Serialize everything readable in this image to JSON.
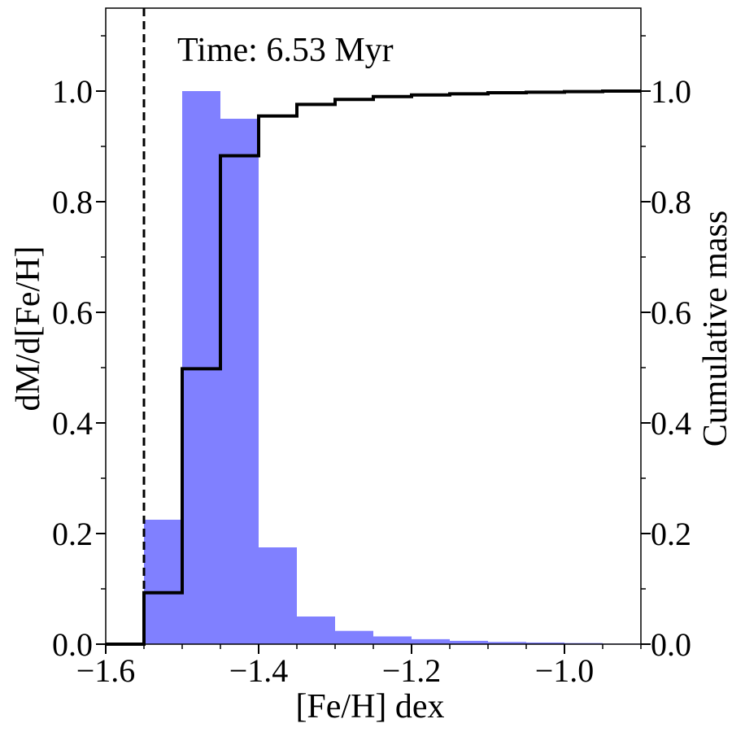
{
  "chart_data": {
    "type": "bar",
    "annotation": "Time: 6.53 Myr",
    "xlabel": "[Fe/H] dex",
    "ylabel": "dM/d[Fe/H]",
    "y2label": "Cumulative mass",
    "xlim": [
      -1.6,
      -0.9
    ],
    "ylim": [
      0,
      1.15
    ],
    "y2lim": [
      0,
      1.15
    ],
    "x_ticks": [
      -1.6,
      -1.4,
      -1.2,
      -1.0
    ],
    "x_tick_labels": [
      "−1.6",
      "−1.4",
      "−1.2",
      "−1.0"
    ],
    "y_ticks": [
      0.0,
      0.2,
      0.4,
      0.6,
      0.8,
      1.0
    ],
    "y_tick_labels": [
      "0.0",
      "0.2",
      "0.4",
      "0.6",
      "0.8",
      "1.0"
    ],
    "y2_tick_labels": [
      "0.0",
      "0.2",
      "0.4",
      "0.6",
      "0.8",
      "1.0"
    ],
    "bin_edges": [
      -1.55,
      -1.5,
      -1.45,
      -1.4,
      -1.35,
      -1.3,
      -1.25,
      -1.2,
      -1.15,
      -1.1,
      -1.05,
      -1.0,
      -0.95,
      -0.9
    ],
    "histogram": {
      "values": [
        0.225,
        1.0,
        0.95,
        0.175,
        0.05,
        0.024,
        0.014,
        0.009,
        0.006,
        0.004,
        0.003,
        0.002,
        0.001
      ],
      "color": "#8080ff"
    },
    "cumulative": {
      "values": [
        0.093,
        0.498,
        0.883,
        0.955,
        0.976,
        0.985,
        0.99,
        0.993,
        0.995,
        0.997,
        0.998,
        0.999,
        1.0
      ],
      "color": "#000000"
    },
    "reference_line": {
      "x": -1.55,
      "style": "dashed",
      "color": "#000000"
    },
    "grid": false
  }
}
